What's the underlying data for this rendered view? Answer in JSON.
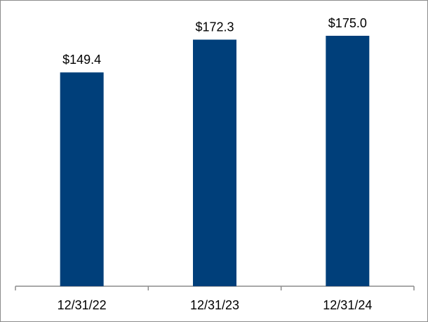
{
  "chart_data": {
    "type": "bar",
    "categories": [
      "12/31/22",
      "12/31/23",
      "12/31/24"
    ],
    "values": [
      149.4,
      172.3,
      175.0
    ],
    "value_labels": [
      "$149.4",
      "$172.3",
      "$175.0"
    ],
    "color": "#003f7a"
  }
}
